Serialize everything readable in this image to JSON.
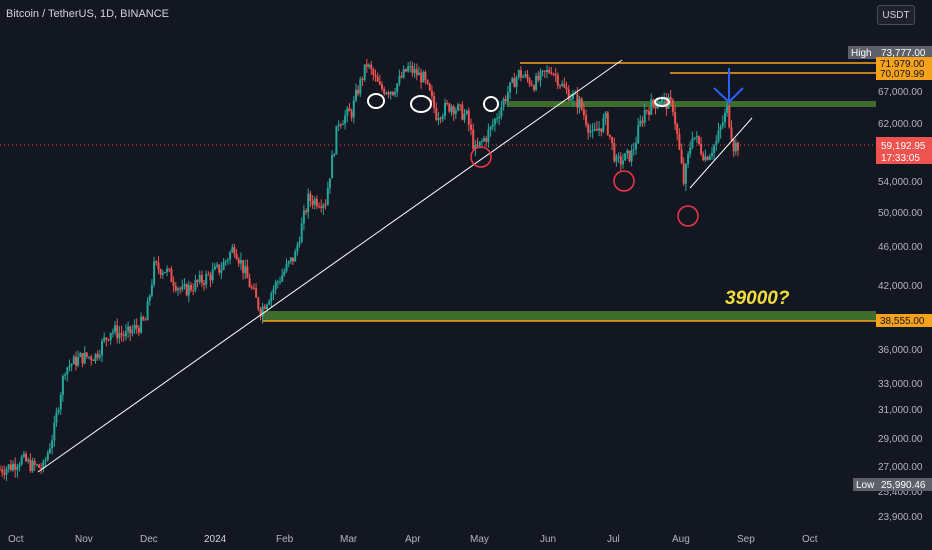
{
  "header": {
    "title": "Bitcoin / TetherUS, 1D, BINANCE",
    "currency_button": "USDT"
  },
  "annotation": "39000?",
  "colors": {
    "background": "#131722",
    "up_candle": "#26a69a",
    "down_candle": "#ef5350",
    "resistance_line": "#f7a21b",
    "support_zone": "#3f6b2e",
    "circle": "#f23645",
    "arrow": "#2962ff",
    "trendline": "#ffffff"
  },
  "chart_data": {
    "type": "candlestick",
    "title": "Bitcoin / TetherUS, 1D, BINANCE",
    "x_tick_labels": [
      "Oct",
      "Nov",
      "Dec",
      "2024",
      "Feb",
      "Mar",
      "Apr",
      "May",
      "Jun",
      "Jul",
      "Aug",
      "Sep",
      "Oct"
    ],
    "y_tick_labels": [
      "23,900.00",
      "25,400.00",
      "27,000.00",
      "29,000.00",
      "31,000.00",
      "33,000.00",
      "36,000.00",
      "42,000.00",
      "46,000.00",
      "50,000.00",
      "54,000.00",
      "62,000.00",
      "67,000.00"
    ],
    "price_labels": [
      {
        "label": "High",
        "value": "73,777.00",
        "color": "#5d606b",
        "text_color": "#ffffff"
      },
      {
        "label": "",
        "value": "71,979.00",
        "color": "#f7a21b",
        "text_color": "#131722"
      },
      {
        "label": "",
        "value": "70,079.99",
        "color": "#f7a21b",
        "text_color": "#131722"
      },
      {
        "label": "",
        "value": "59,192.95",
        "sub": "17:33:05",
        "color": "#ef5350",
        "text_color": "#ffffff"
      },
      {
        "label": "",
        "value": "38,555.00",
        "color": "#f7a21b",
        "text_color": "#131722"
      },
      {
        "label": "Low",
        "value": "25,990.46",
        "color": "#5d606b",
        "text_color": "#ffffff"
      }
    ],
    "current_price": 59192.95,
    "levels": {
      "resistance_high": 71979,
      "resistance_mid": 70079.99,
      "support": 38555,
      "zone_top": [
        64600,
        65400
      ],
      "zone_bottom": [
        38555,
        39900
      ]
    },
    "series": [
      {
        "name": "BTCUSDT",
        "points": [
          {
            "d": "2023-09-25",
            "c": 26800
          },
          {
            "d": "2023-09-30",
            "c": 27000
          },
          {
            "d": "2023-10-05",
            "c": 27500
          },
          {
            "d": "2023-10-10",
            "c": 27000
          },
          {
            "d": "2023-10-15",
            "c": 26900
          },
          {
            "d": "2023-10-20",
            "c": 29600
          },
          {
            "d": "2023-10-25",
            "c": 34500
          },
          {
            "d": "2023-11-01",
            "c": 35400
          },
          {
            "d": "2023-11-08",
            "c": 35600
          },
          {
            "d": "2023-11-15",
            "c": 37800
          },
          {
            "d": "2023-11-22",
            "c": 37300
          },
          {
            "d": "2023-12-01",
            "c": 38600
          },
          {
            "d": "2023-12-05",
            "c": 44000
          },
          {
            "d": "2023-12-10",
            "c": 43800
          },
          {
            "d": "2023-12-18",
            "c": 41500
          },
          {
            "d": "2023-12-28",
            "c": 42800
          },
          {
            "d": "2024-01-05",
            "c": 44000
          },
          {
            "d": "2024-01-11",
            "c": 46200
          },
          {
            "d": "2024-01-17",
            "c": 42800
          },
          {
            "d": "2024-01-23",
            "c": 39600
          },
          {
            "d": "2024-01-31",
            "c": 42600
          },
          {
            "d": "2024-02-08",
            "c": 45300
          },
          {
            "d": "2024-02-14",
            "c": 51800
          },
          {
            "d": "2024-02-22",
            "c": 51600
          },
          {
            "d": "2024-02-28",
            "c": 62500
          },
          {
            "d": "2024-03-05",
            "c": 63800
          },
          {
            "d": "2024-03-12",
            "c": 72000
          },
          {
            "d": "2024-03-18",
            "c": 67500
          },
          {
            "d": "2024-03-24",
            "c": 67200
          },
          {
            "d": "2024-03-31",
            "c": 71200
          },
          {
            "d": "2024-04-07",
            "c": 69300
          },
          {
            "d": "2024-04-13",
            "c": 63500
          },
          {
            "d": "2024-04-20",
            "c": 64900
          },
          {
            "d": "2024-04-27",
            "c": 63100
          },
          {
            "d": "2024-05-01",
            "c": 58300
          },
          {
            "d": "2024-05-08",
            "c": 61200
          },
          {
            "d": "2024-05-15",
            "c": 66200
          },
          {
            "d": "2024-05-21",
            "c": 70200
          },
          {
            "d": "2024-05-28",
            "c": 68300
          },
          {
            "d": "2024-06-05",
            "c": 71100
          },
          {
            "d": "2024-06-11",
            "c": 67300
          },
          {
            "d": "2024-06-18",
            "c": 65100
          },
          {
            "d": "2024-06-24",
            "c": 60300
          },
          {
            "d": "2024-06-30",
            "c": 62700
          },
          {
            "d": "2024-07-05",
            "c": 56600
          },
          {
            "d": "2024-07-12",
            "c": 57900
          },
          {
            "d": "2024-07-18",
            "c": 64000
          },
          {
            "d": "2024-07-25",
            "c": 65800
          },
          {
            "d": "2024-07-31",
            "c": 64600
          },
          {
            "d": "2024-08-05",
            "c": 54000
          },
          {
            "d": "2024-08-09",
            "c": 60800
          },
          {
            "d": "2024-08-15",
            "c": 57500
          },
          {
            "d": "2024-08-20",
            "c": 59500
          },
          {
            "d": "2024-08-25",
            "c": 64200
          },
          {
            "d": "2024-08-28",
            "c": 59100
          },
          {
            "d": "2024-08-30",
            "c": 59192.95
          }
        ]
      }
    ]
  }
}
